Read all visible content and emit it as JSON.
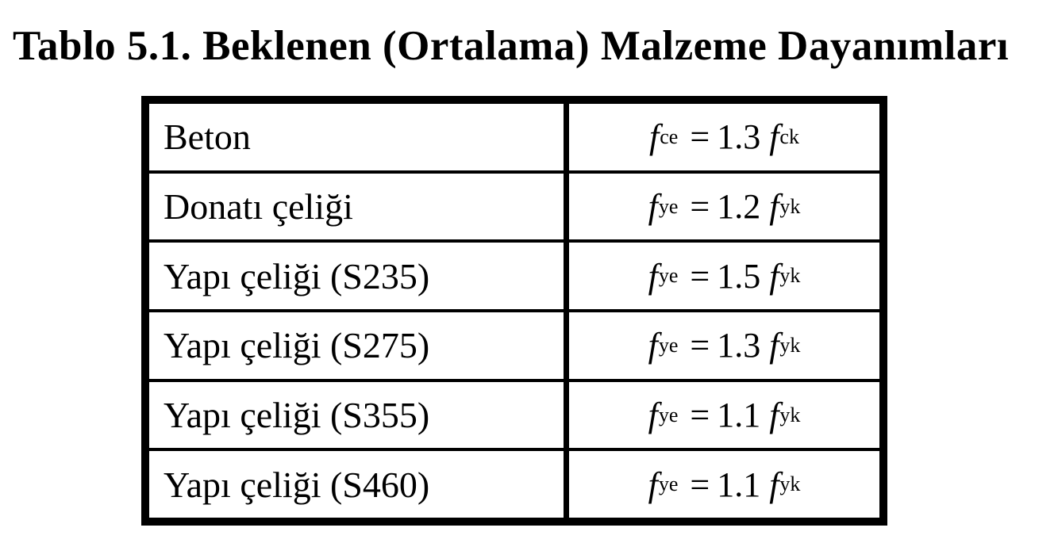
{
  "title": "Tablo 5.1. Beklenen (Ortalama) Malzeme Dayanımları",
  "colors": {
    "text": "#000000",
    "background": "#ffffff",
    "table_border": "#000000"
  },
  "table": {
    "rows": [
      {
        "material": "Beton",
        "formula": {
          "lhs_var": "f",
          "lhs_sub": "ce",
          "equals": "=",
          "coef": "1.3",
          "rhs_var": "f",
          "rhs_sub": "ck"
        }
      },
      {
        "material": "Donatı çeliği",
        "formula": {
          "lhs_var": "f",
          "lhs_sub": "ye",
          "equals": "=",
          "coef": "1.2",
          "rhs_var": "f",
          "rhs_sub": "yk"
        }
      },
      {
        "material": "Yapı çeliği (S235)",
        "formula": {
          "lhs_var": "f",
          "lhs_sub": "ye",
          "equals": "=",
          "coef": "1.5",
          "rhs_var": "f",
          "rhs_sub": "yk"
        }
      },
      {
        "material": "Yapı çeliği (S275)",
        "formula": {
          "lhs_var": "f",
          "lhs_sub": "ye",
          "equals": "=",
          "coef": "1.3",
          "rhs_var": "f",
          "rhs_sub": "yk"
        }
      },
      {
        "material": "Yapı çeliği (S355)",
        "formula": {
          "lhs_var": "f",
          "lhs_sub": "ye",
          "equals": "=",
          "coef": "1.1",
          "rhs_var": "f",
          "rhs_sub": "yk"
        }
      },
      {
        "material": "Yapı çeliği (S460)",
        "formula": {
          "lhs_var": "f",
          "lhs_sub": "ye",
          "equals": "=",
          "coef": "1.1",
          "rhs_var": "f",
          "rhs_sub": "yk"
        }
      }
    ]
  }
}
